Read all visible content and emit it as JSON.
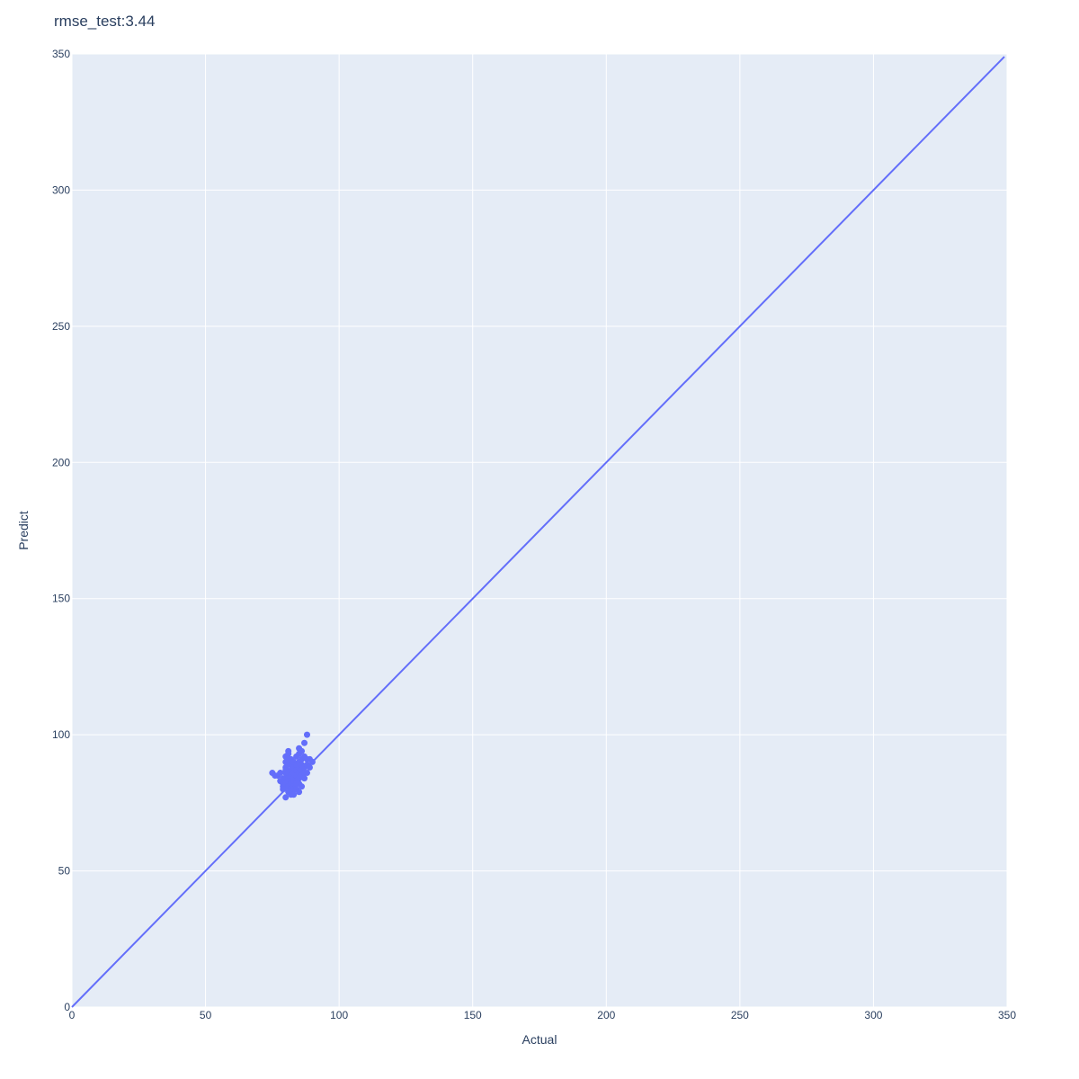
{
  "chart_data": {
    "type": "scatter",
    "title": "rmse_test:3.44",
    "xlabel": "Actual",
    "ylabel": "Predict",
    "xlim": [
      0,
      350
    ],
    "ylim": [
      0,
      350
    ],
    "xticks": [
      0,
      50,
      100,
      150,
      200,
      250,
      300,
      350
    ],
    "yticks": [
      0,
      50,
      100,
      150,
      200,
      250,
      300,
      350
    ],
    "xtick_labels": [
      "0",
      "50",
      "100",
      "150",
      "200",
      "250",
      "300",
      "350"
    ],
    "ytick_labels": [
      "0",
      "50",
      "100",
      "150",
      "200",
      "250",
      "300",
      "350"
    ],
    "grid": true,
    "legend": "none",
    "colors": {
      "series": "#636efa",
      "plot_bg": "#e5ecf6",
      "grid": "#ffffff",
      "text": "#2a3f5f"
    },
    "reference_line": {
      "x": [
        0,
        349
      ],
      "y": [
        0,
        349
      ]
    },
    "series": [
      {
        "type": "scatter",
        "x": [
          75,
          76,
          77,
          78,
          78,
          79,
          79,
          79,
          79,
          80,
          80,
          80,
          80,
          80,
          80,
          80,
          80,
          81,
          81,
          81,
          81,
          81,
          81,
          81,
          81,
          81,
          82,
          82,
          82,
          82,
          82,
          82,
          82,
          82,
          83,
          83,
          83,
          83,
          83,
          83,
          83,
          83,
          84,
          84,
          84,
          84,
          84,
          84,
          84,
          85,
          85,
          85,
          85,
          85,
          85,
          85,
          85,
          86,
          86,
          86,
          86,
          86,
          86,
          87,
          87,
          87,
          87,
          87,
          88,
          88,
          88,
          88,
          89,
          89,
          90
        ],
        "y": [
          86,
          85,
          85,
          86,
          83,
          82,
          81,
          84,
          80,
          92,
          90,
          88,
          87,
          86,
          84,
          82,
          77,
          94,
          93,
          91,
          89,
          86,
          84,
          83,
          81,
          79,
          91,
          89,
          87,
          85,
          83,
          82,
          80,
          78,
          90,
          88,
          86,
          84,
          83,
          81,
          80,
          78,
          92,
          89,
          87,
          85,
          83,
          82,
          80,
          95,
          93,
          90,
          88,
          86,
          84,
          82,
          79,
          94,
          91,
          89,
          87,
          85,
          81,
          97,
          92,
          88,
          86,
          84,
          100,
          91,
          89,
          86,
          91,
          88,
          90
        ]
      }
    ]
  }
}
